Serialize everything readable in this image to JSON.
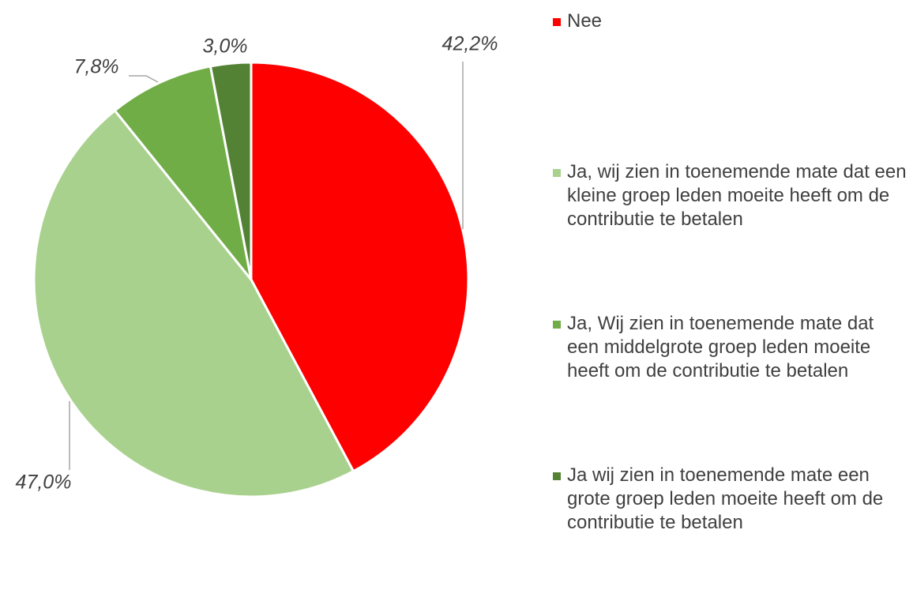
{
  "chart_data": {
    "type": "pie",
    "categories": [
      "Nee",
      "Ja, wij zien in toenemende mate dat een\nkleine groep leden moeite heeft om de\ncontributie te betalen",
      "Ja, Wij zien in toenemende mate dat\neen middelgrote groep leden moeite\nheeft om de contributie te betalen",
      "Ja wij zien in toenemende mate een\ngrote groep leden moeite heeft om de\ncontributie te betalen"
    ],
    "values": [
      42.2,
      47.0,
      7.8,
      3.0
    ],
    "value_labels": [
      "42,2%",
      "47,0%",
      "7,8%",
      "3,0%"
    ],
    "colors": [
      "#ff0000",
      "#a9d18e",
      "#70ad47",
      "#548235"
    ]
  }
}
